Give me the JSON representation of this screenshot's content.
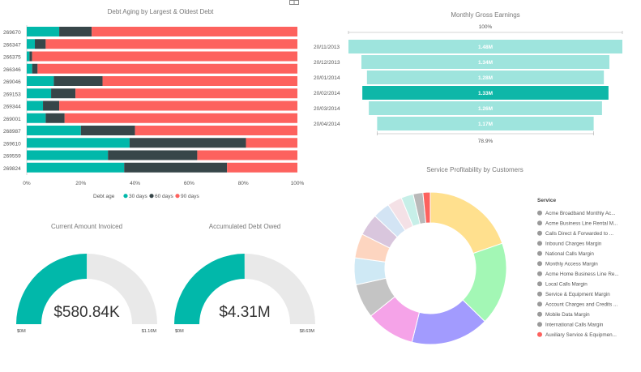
{
  "chart_data": [
    {
      "type": "bar",
      "orientation": "horizontal",
      "stacked": "100%",
      "title": "Debt Aging by Largest & Oldest Debt",
      "categories": [
        "269670",
        "266347",
        "266375",
        "266346",
        "269046",
        "269153",
        "269344",
        "269001",
        "268987",
        "269610",
        "269559",
        "269824"
      ],
      "series": [
        {
          "name": "30 days",
          "color": "#01B8AA",
          "values": [
            12,
            3,
            1,
            2,
            10,
            9,
            6,
            7,
            20,
            38,
            30,
            36
          ]
        },
        {
          "name": "60 days",
          "color": "#374649",
          "values": [
            12,
            4,
            1,
            2,
            18,
            9,
            6,
            7,
            20,
            43,
            33,
            38
          ]
        },
        {
          "name": "90 days",
          "color": "#FD625E",
          "values": [
            76,
            93,
            98,
            96,
            72,
            82,
            88,
            86,
            60,
            19,
            37,
            26
          ]
        }
      ],
      "xticks": [
        "0%",
        "20%",
        "40%",
        "60%",
        "80%",
        "100%"
      ],
      "xlim": [
        0,
        100
      ],
      "legend": {
        "title": "Debt age",
        "position": "bottom"
      }
    },
    {
      "type": "funnel",
      "title": "Monthly Gross Earnings",
      "categories": [
        "20/11/2013",
        "20/12/2013",
        "20/01/2014",
        "20/02/2014",
        "20/03/2014",
        "20/04/2014"
      ],
      "values": [
        1.48,
        1.34,
        1.28,
        1.33,
        1.26,
        1.17
      ],
      "value_labels": [
        "1.48M",
        "1.34M",
        "1.28M",
        "1.33M",
        "1.26M",
        "1.17M"
      ],
      "highlighted_index": 3,
      "colors": {
        "normal": "#9EE4DD",
        "highlight": "#0EB7A8"
      },
      "top_label": "100%",
      "bottom_label": "78.9%"
    },
    {
      "type": "pie",
      "donut": true,
      "title": "Service Profitability by Customers",
      "legend_title": "Service",
      "categories": [
        "Acme Broadband Monthly Ac...",
        "Acme Business Line Rental M...",
        "Calls Direct & Forwarded to ...",
        "Inbound Charges Margin",
        "National Calls Margin",
        "Monthly Access Margin",
        "Acme Home Business Line Re...",
        "Local Calls Margin",
        "Service & Equipment Margin",
        "Account Charges and Credits ...",
        "Mobile Data Margin",
        "International Calls Margin",
        "Auxiliary Service & Equipmen..."
      ],
      "values": [
        19,
        17,
        16,
        10,
        7,
        5.5,
        5,
        4.5,
        3.5,
        3,
        2.5,
        2,
        1.5
      ],
      "colors": [
        "#FFE08E",
        "#A3F7B5",
        "#A29BFE",
        "#F5A3E8",
        "#C4C4C4",
        "#CFE9F5",
        "#FDD5C0",
        "#D9C6DD",
        "#D3E4F4",
        "#F4E1E6",
        "#C7EFE8",
        "#B9B9B9",
        "#FD625E"
      ]
    },
    {
      "type": "gauge",
      "title": "Current Amount Invoiced",
      "value": 580.84,
      "max": 1160,
      "value_label": "$580.84K",
      "min_label": "$0M",
      "max_label": "$1.16M"
    },
    {
      "type": "gauge",
      "title": "Accumulated Debt Owed",
      "value": 4.31,
      "max": 8.63,
      "value_label": "$4.31M",
      "min_label": "$0M",
      "max_label": "$8.63M"
    }
  ],
  "colors": {
    "gauge_fill": "#01B8AA",
    "gauge_track": "#E9E9E9",
    "legend_dot": "#999999"
  }
}
